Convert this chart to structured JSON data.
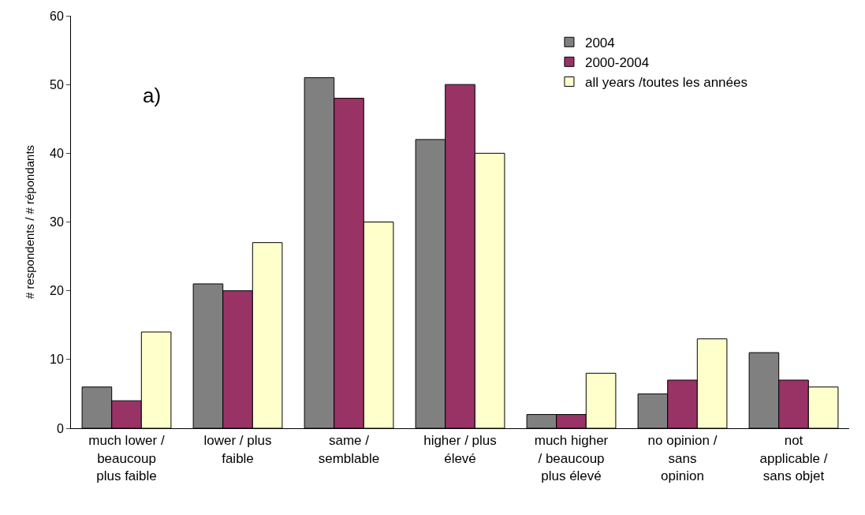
{
  "chart_data": {
    "type": "bar",
    "ylabel": "# respondents / # répondants",
    "categories": [
      "much lower /\nbeaucoup\nplus faible",
      "lower / plus\nfaible",
      "same /\nsemblable",
      "higher / plus\nélevé",
      "much higher\n/ beaucoup\nplus élevé",
      "no opinion /\nsans\nopinion",
      "not\napplicable /\nsans objet"
    ],
    "series": [
      {
        "name": "2004",
        "color": "#808080",
        "values": [
          6,
          21,
          51,
          42,
          2,
          5,
          11
        ]
      },
      {
        "name": "2000-2004",
        "color": "#993366",
        "values": [
          4,
          20,
          48,
          50,
          2,
          7,
          7
        ]
      },
      {
        "name": "all years /toutes les années",
        "color": "#ffffcc",
        "values": [
          14,
          27,
          30,
          40,
          8,
          13,
          6
        ]
      }
    ],
    "ylim": [
      0,
      60
    ],
    "yticks": [
      0,
      10,
      20,
      30,
      40,
      50,
      60
    ],
    "annotations": [
      "a)"
    ],
    "legend": "top right"
  }
}
